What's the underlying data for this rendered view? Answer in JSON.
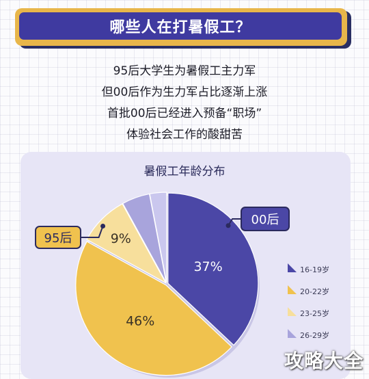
{
  "banner": {
    "title": "哪些人在打暑假工？"
  },
  "intro": {
    "lines": [
      "95后大学生为暑假工主力军",
      "但00后作为生力军占比逐渐上涨",
      "首批00后已经进入预备“职场”",
      "体验社会工作的酸甜苦"
    ]
  },
  "chart_data": {
    "type": "pie",
    "title": "暑假工年龄分布",
    "slices": [
      {
        "label": "16-19岁",
        "value": 37,
        "display": "37%",
        "color": "#4b47a6"
      },
      {
        "label": "20-22岁",
        "value": 46,
        "display": "46%",
        "color": "#f0c24e"
      },
      {
        "label": "23-25岁",
        "value": 9,
        "display": "9%",
        "color": "#f7df9c"
      },
      {
        "label": "26-29岁",
        "value": 5,
        "display": "",
        "color": "#a8a4dc"
      },
      {
        "label": "",
        "value": 3,
        "display": "",
        "color": "#cac7ee"
      }
    ],
    "legend_position": "right",
    "callouts": [
      {
        "text": "00后"
      },
      {
        "text": "95后"
      }
    ]
  },
  "watermark": {
    "text": "攻略大全"
  }
}
